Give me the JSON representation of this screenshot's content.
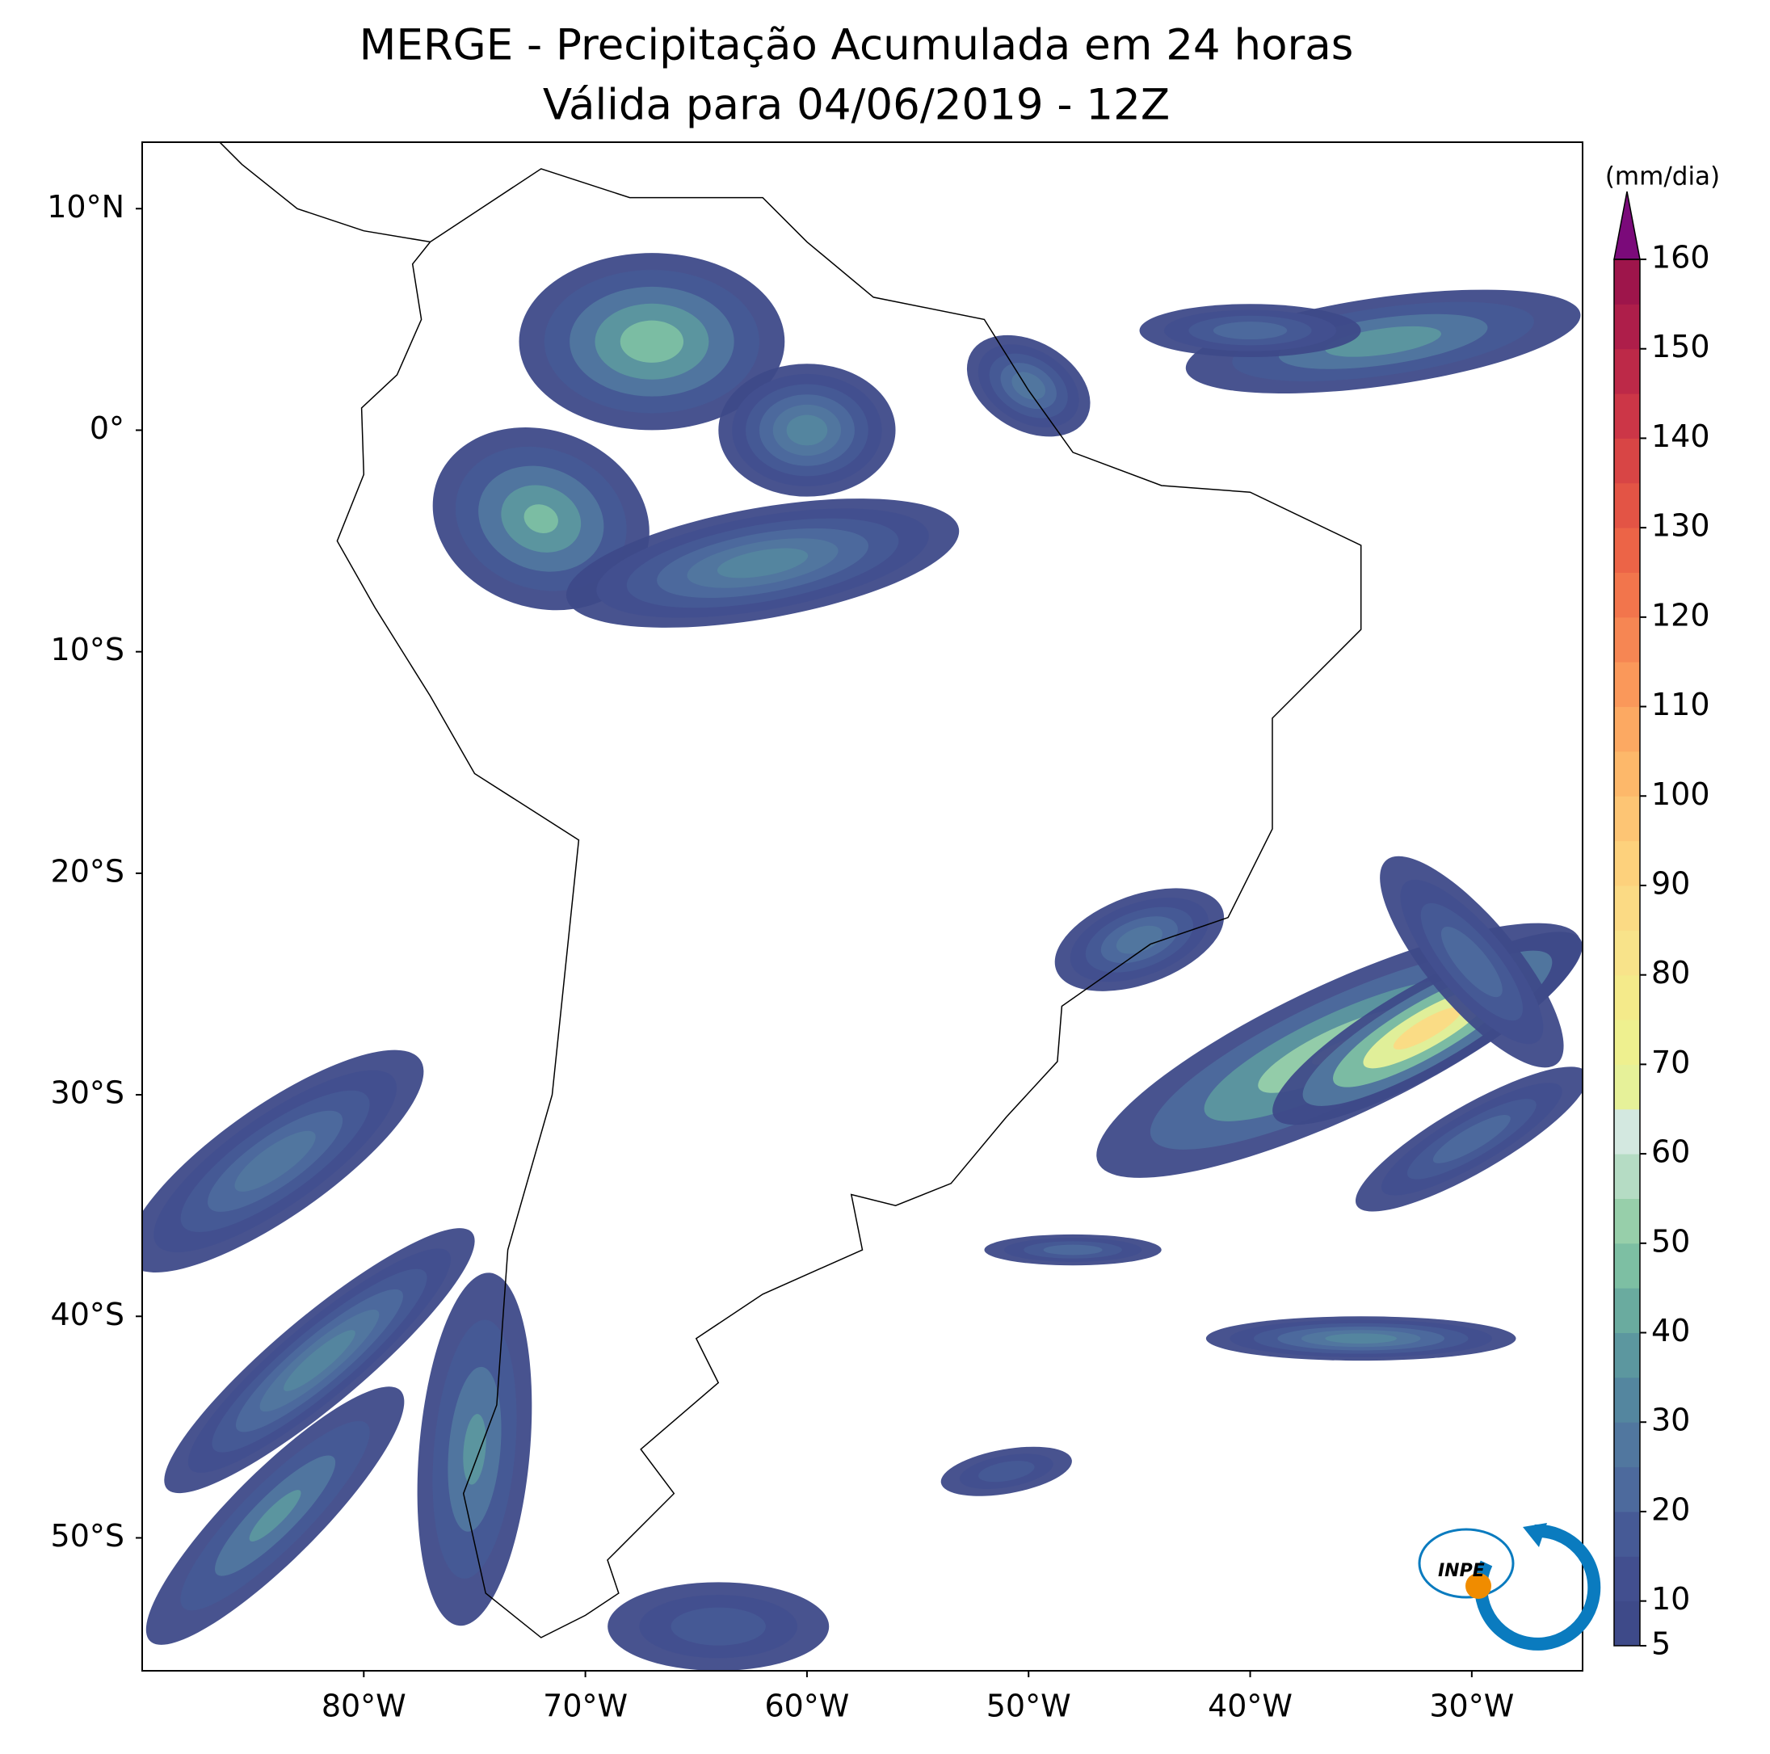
{
  "chart_data": {
    "type": "map",
    "title": "MERGE - Precipitação Acumulada em 24 horas",
    "subtitle": "Válida para 04/06/2019 - 12Z",
    "xlim": [
      -90,
      -25
    ],
    "ylim": [
      -56,
      13
    ],
    "xticks": [
      {
        "value": -80,
        "label": "80°W"
      },
      {
        "value": -70,
        "label": "70°W"
      },
      {
        "value": -60,
        "label": "60°W"
      },
      {
        "value": -50,
        "label": "50°W"
      },
      {
        "value": -40,
        "label": "40°W"
      },
      {
        "value": -30,
        "label": "30°W"
      }
    ],
    "yticks": [
      {
        "value": 10,
        "label": "10°N"
      },
      {
        "value": 0,
        "label": "0°"
      },
      {
        "value": -10,
        "label": "10°S"
      },
      {
        "value": -20,
        "label": "20°S"
      },
      {
        "value": -30,
        "label": "30°S"
      },
      {
        "value": -40,
        "label": "40°S"
      },
      {
        "value": -50,
        "label": "50°S"
      }
    ],
    "colorbar": {
      "label": "(mm/dia)",
      "lim": [
        5,
        160
      ],
      "ticks": [
        5,
        10,
        20,
        30,
        40,
        50,
        60,
        70,
        80,
        90,
        100,
        110,
        120,
        130,
        140,
        150,
        160
      ],
      "colors": [
        "#3e4a89",
        "#424f8f",
        "#465a96",
        "#4d6a9d",
        "#51779f",
        "#54869f",
        "#5c979f",
        "#6aab9f",
        "#7dbfa3",
        "#97cfaa",
        "#b5dcc4",
        "#d3e8e0",
        "#e6f199",
        "#eef08f",
        "#f4ea8a",
        "#f8e38a",
        "#fbda84",
        "#fdd17c",
        "#fdc574",
        "#fdb86a",
        "#fca962",
        "#fa985a",
        "#f68653",
        "#f2754c",
        "#ec6447",
        "#e35445",
        "#d84545",
        "#cc3647",
        "#bd2948",
        "#ae1e4a",
        "#9e154b"
      ],
      "extend_color": "#7b0a7a"
    },
    "logo_text": "INPE"
  }
}
